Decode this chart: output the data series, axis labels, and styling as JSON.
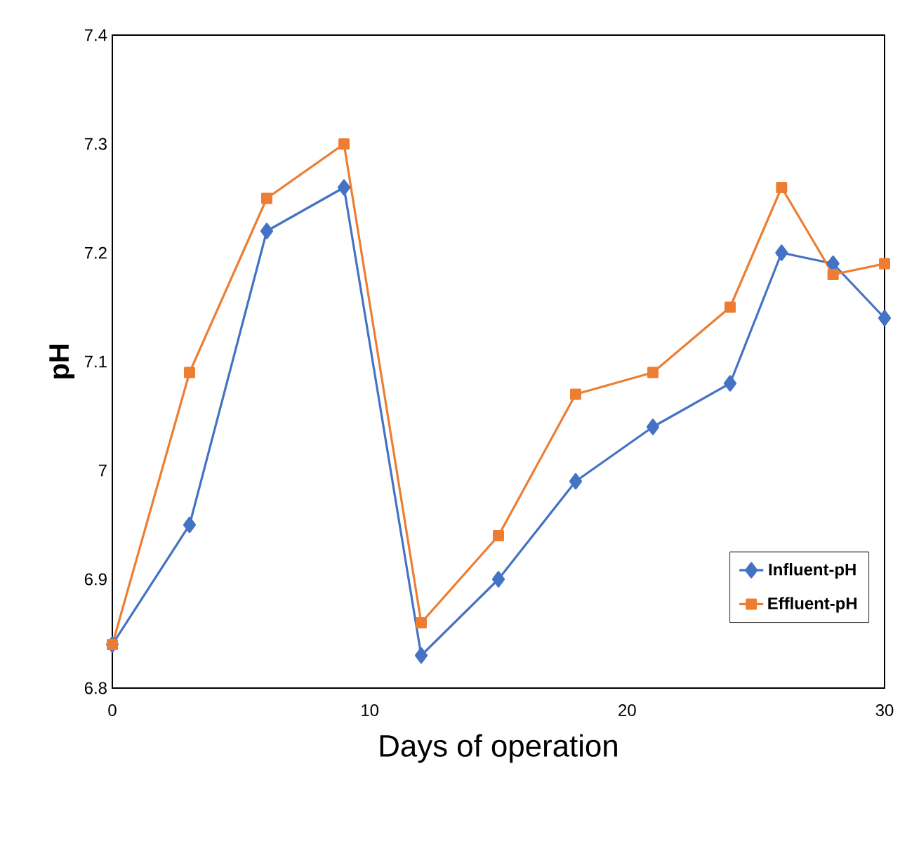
{
  "chart_data": {
    "type": "line",
    "xlabel": "Days of operation",
    "ylabel": "pH",
    "xlim": [
      0,
      30
    ],
    "xticks": [
      0,
      10,
      20,
      30
    ],
    "ylim": [
      6.8,
      7.4
    ],
    "yticks": [
      6.8,
      6.9,
      7,
      7.1,
      7.2,
      7.3,
      7.4
    ],
    "grid": false,
    "legend": "bottom right",
    "line_style": "solid",
    "series": [
      {
        "name": "Influent-pH",
        "color": "#4472c4",
        "marker": "diamond",
        "x": [
          0,
          3,
          6,
          9,
          12,
          15,
          18,
          21,
          24,
          26,
          28,
          30
        ],
        "values": [
          6.84,
          6.95,
          7.22,
          7.26,
          6.83,
          6.9,
          6.99,
          7.04,
          7.08,
          7.2,
          7.19,
          7.14
        ]
      },
      {
        "name": "Effluent-pH",
        "color": "#ed7d31",
        "marker": "square",
        "x": [
          0,
          3,
          6,
          9,
          12,
          15,
          18,
          21,
          24,
          26,
          28,
          30
        ],
        "values": [
          6.84,
          7.09,
          7.25,
          7.3,
          6.86,
          6.94,
          7.07,
          7.09,
          7.15,
          7.26,
          7.18,
          7.19
        ]
      }
    ]
  }
}
